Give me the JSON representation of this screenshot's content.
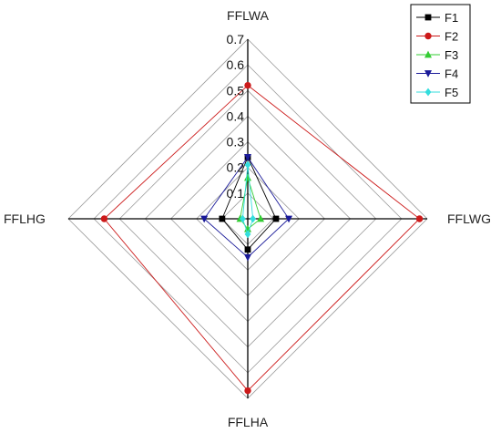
{
  "chart_data": {
    "type": "radar",
    "axes": [
      "FFLWA",
      "FFLWG",
      "FFLHA",
      "FFLHG"
    ],
    "range": [
      0,
      0.7
    ],
    "ticks": [
      "0.1",
      "0.2",
      "0.3",
      "0.4",
      "0.5",
      "0.6",
      "0.7"
    ],
    "grid": true,
    "legend_position": "top-right",
    "series": [
      {
        "name": "F1",
        "values": [
          0.24,
          0.11,
          0.12,
          0.1
        ],
        "color": "#000000",
        "marker": "square"
      },
      {
        "name": "F2",
        "values": [
          0.52,
          0.67,
          0.67,
          0.56
        ],
        "color": "#cc1a1a",
        "marker": "circle"
      },
      {
        "name": "F3",
        "values": [
          0.16,
          0.05,
          0.04,
          0.03
        ],
        "color": "#33cc33",
        "marker": "triangle-up"
      },
      {
        "name": "F4",
        "values": [
          0.24,
          0.16,
          0.15,
          0.17
        ],
        "color": "#1a1a99",
        "marker": "triangle-down"
      },
      {
        "name": "F5",
        "values": [
          0.21,
          0.02,
          0.06,
          0.02
        ],
        "color": "#33dddd",
        "marker": "diamond"
      }
    ]
  }
}
